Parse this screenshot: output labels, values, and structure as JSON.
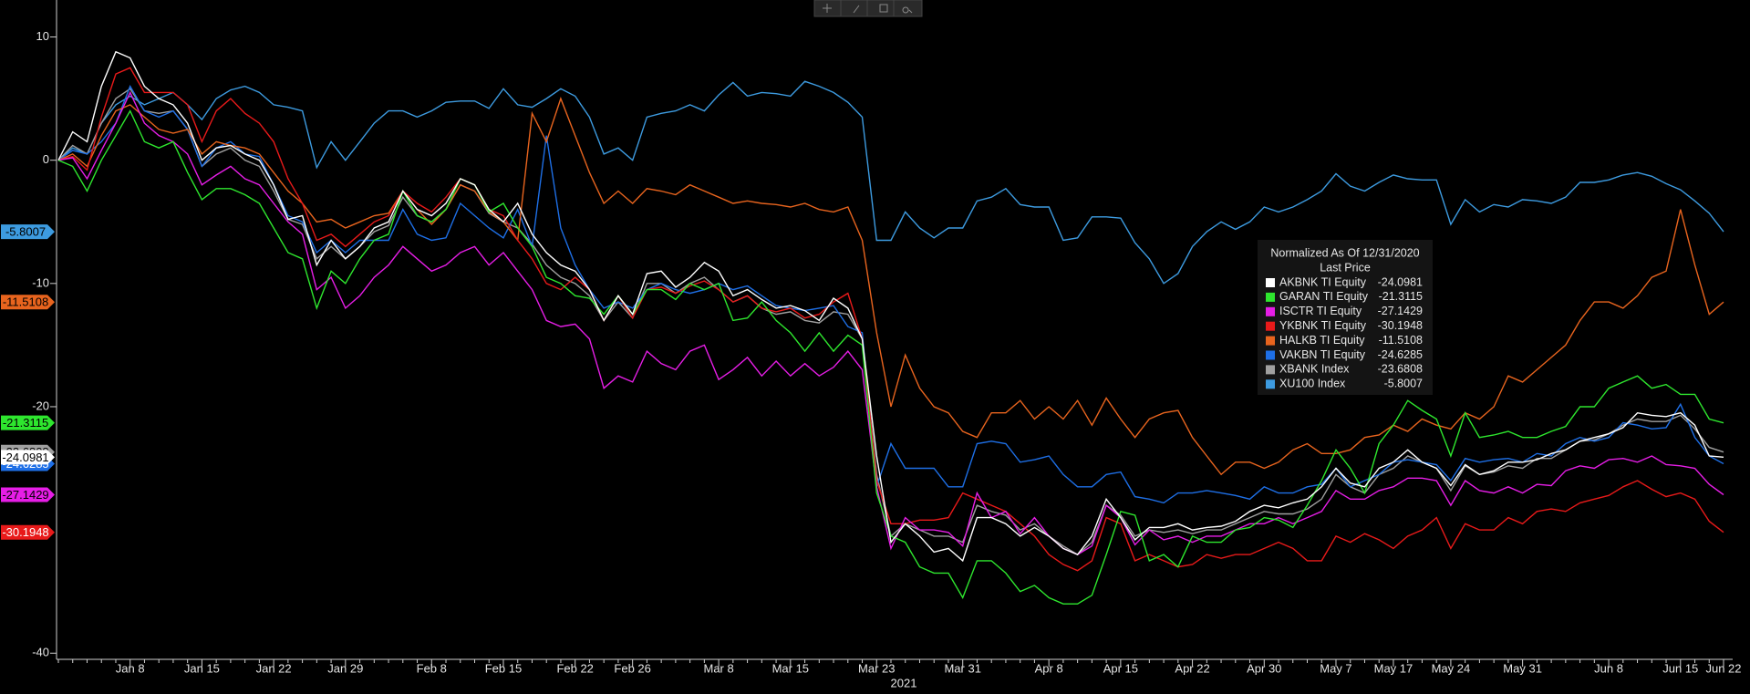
{
  "chart_data": {
    "type": "line",
    "legend_title": "Normalized As Of 12/31/2020",
    "legend_subtitle": "Last Price",
    "x_label": "2021",
    "categories": [
      null,
      null,
      null,
      null,
      null,
      "Jan 8",
      null,
      null,
      null,
      null,
      "Jan 15",
      null,
      null,
      null,
      null,
      "Jan 22",
      null,
      null,
      null,
      null,
      "Jan 29",
      null,
      null,
      null,
      null,
      null,
      "Feb 8",
      null,
      null,
      null,
      null,
      "Feb 15",
      null,
      null,
      null,
      null,
      "Feb 22",
      null,
      null,
      null,
      "Feb 26",
      null,
      null,
      null,
      null,
      null,
      "Mar 8",
      null,
      null,
      null,
      null,
      "Mar 15",
      null,
      null,
      null,
      null,
      null,
      "Mar 23",
      null,
      null,
      null,
      null,
      null,
      "Mar 31",
      null,
      null,
      null,
      null,
      null,
      "Apr 8",
      null,
      null,
      null,
      null,
      "Apr 15",
      null,
      null,
      null,
      null,
      "Apr 22",
      null,
      null,
      null,
      null,
      "Apr 30",
      null,
      null,
      null,
      null,
      "May 7",
      null,
      null,
      null,
      "May 17",
      null,
      null,
      null,
      "May 24",
      null,
      null,
      null,
      null,
      "May 31",
      null,
      null,
      null,
      null,
      null,
      "Jun 8",
      null,
      null,
      null,
      null,
      "Jun 15",
      null,
      null,
      "Jun 22"
    ],
    "ylim": [
      -40.5,
      13
    ],
    "yticks": [
      10,
      0,
      -10,
      -20,
      -40
    ],
    "series": [
      {
        "name": "AKBNK TI Equity",
        "color": "#ffffff",
        "values": [
          0,
          2.3,
          1.5,
          6,
          8.8,
          8.3,
          6,
          5,
          4.5,
          3,
          0,
          1,
          1.2,
          0.5,
          0,
          -2,
          -4.8,
          -4.5,
          -8.5,
          -6.5,
          -8,
          -7,
          -5.5,
          -5,
          -2.5,
          -4,
          -4.5,
          -3.5,
          -1.5,
          -2,
          -4,
          -5,
          -3.5,
          -6,
          -7.5,
          -8.5,
          -9,
          -10.5,
          -13,
          -11,
          -12.5,
          -9.2,
          -9,
          -10.3,
          -9.5,
          -8.3,
          -9,
          -11,
          -10.5,
          -11.3,
          -12,
          -11.8,
          -12.2,
          -13,
          -11.2,
          -12,
          -14.5,
          -24,
          -31,
          -29.5,
          -30.5,
          -31.8,
          -31.5,
          -32.5,
          -29,
          -29,
          -29.5,
          -30.5,
          -29.8,
          -30.5,
          -31.5,
          -32,
          -30.5,
          -27.5,
          -29,
          -30.8,
          -29.8,
          -29.8,
          -29.5,
          -30,
          -29.8,
          -29.7,
          -29.3,
          -28.5,
          -28,
          -28.2,
          -27.8,
          -27.5,
          -26.5,
          -25,
          -26.2,
          -26.5,
          -25,
          -24.5,
          -23.5,
          -24.5,
          -25,
          -26.4,
          -24.7,
          -25.5,
          -25.2,
          -24.5,
          -24.5,
          -24.3,
          -23.8,
          -23.5,
          -22.8,
          -22.5,
          -22.2,
          -21.7,
          -20.5,
          -20.7,
          -20.8,
          -20.5,
          -21.5,
          -24,
          -24.0981
        ]
      },
      {
        "name": "GARAN TI Equity",
        "color": "#2ee62e",
        "values": [
          0,
          -0.5,
          -2.5,
          0,
          2,
          4,
          1.5,
          1,
          1.5,
          -1,
          -3.2,
          -2.3,
          -2.3,
          -2.8,
          -3.5,
          -5.5,
          -7.5,
          -8,
          -12,
          -9,
          -10,
          -8,
          -6.5,
          -6,
          -2.5,
          -4.5,
          -5,
          -4,
          -1.5,
          -2,
          -4.2,
          -3.5,
          -5.5,
          -7,
          -9.5,
          -10,
          -11,
          -11.2,
          -12.5,
          -11,
          -12.5,
          -10.5,
          -10.5,
          -11.3,
          -10,
          -10.5,
          -10,
          -13,
          -12.8,
          -11.5,
          -13,
          -14,
          -15.5,
          -14,
          -15.5,
          -14.2,
          -15,
          -27,
          -30.5,
          -31,
          -33,
          -33.5,
          -33.5,
          -35.5,
          -32.5,
          -32.5,
          -33.5,
          -35,
          -34.5,
          -35.5,
          -36,
          -36,
          -35.3,
          -32,
          -28.5,
          -28.8,
          -32.5,
          -32,
          -33,
          -30.5,
          -31,
          -31,
          -30,
          -29.8,
          -29,
          -29.2,
          -29.8,
          -28,
          -26,
          -23.5,
          -25,
          -27,
          -23,
          -21.5,
          -19.5,
          -20.3,
          -21,
          -24,
          -20.5,
          -22.5,
          -22.3,
          -22,
          -22.5,
          -22.5,
          -22,
          -21.6,
          -20,
          -20,
          -18.5,
          -18,
          -17.5,
          -18.5,
          -18.2,
          -19,
          -19,
          -21,
          -21.3115
        ]
      },
      {
        "name": "ISCTR TI Equity",
        "color": "#e61ee6",
        "values": [
          0,
          0.2,
          -1.5,
          0.8,
          3,
          5.5,
          3,
          2,
          1.5,
          0.5,
          -2,
          -1.2,
          -0.5,
          -1.5,
          -2,
          -3.5,
          -5,
          -6,
          -10.5,
          -9.5,
          -12,
          -11,
          -9.5,
          -8.5,
          -7,
          -8,
          -9,
          -8.5,
          -7.5,
          -7,
          -8.5,
          -7.5,
          -9,
          -10.5,
          -13,
          -13.5,
          -13.3,
          -14.5,
          -18.5,
          -17.5,
          -18,
          -15.5,
          -16.5,
          -17,
          -15.5,
          -15,
          -17.8,
          -17,
          -16,
          -17.5,
          -16.3,
          -17.5,
          -16.5,
          -17.5,
          -16.8,
          -15.5,
          -17,
          -26.5,
          -31.5,
          -29,
          -30,
          -30,
          -30.2,
          -31.3,
          -27,
          -29,
          -28.5,
          -30.3,
          -29,
          -30.5,
          -31.5,
          -32,
          -31.3,
          -28,
          -29,
          -31.2,
          -30,
          -30.8,
          -30.5,
          -31,
          -30.5,
          -30.5,
          -30,
          -29.5,
          -29.5,
          -29,
          -29.5,
          -29,
          -28.5,
          -26.8,
          -27.5,
          -27.5,
          -26.8,
          -26.5,
          -25.8,
          -25.8,
          -26,
          -28,
          -26,
          -26.8,
          -27,
          -26.5,
          -27,
          -26.3,
          -26.4,
          -25.2,
          -24.8,
          -25,
          -24.3,
          -24.2,
          -24.5,
          -24,
          -24.7,
          -24.8,
          -25,
          -26.3,
          -27.1429
        ]
      },
      {
        "name": "YKBNK TI Equity",
        "color": "#e81a1a",
        "values": [
          0,
          0.3,
          -0.8,
          3.5,
          7,
          7.5,
          5.5,
          5.5,
          5.5,
          4.5,
          1.5,
          4,
          5,
          3.8,
          3,
          1.5,
          -1.5,
          -3.5,
          -6.5,
          -6,
          -7,
          -6,
          -5,
          -4.5,
          -2.5,
          -3.5,
          -4.2,
          -3,
          -1.5,
          -2,
          -4,
          -4.5,
          -6.5,
          -8,
          -10,
          -10.5,
          -9.5,
          -10.5,
          -13,
          -11,
          -12.8,
          -10.5,
          -10.3,
          -10.8,
          -10.2,
          -9.8,
          -10.5,
          -11.5,
          -11,
          -12,
          -12.3,
          -12,
          -12.8,
          -12.5,
          -11.5,
          -10.8,
          -14.5,
          -26,
          -29.5,
          -29.5,
          -29.2,
          -29.2,
          -29,
          -27,
          -27.5,
          -28,
          -28.5,
          -29.5,
          -30.5,
          -32,
          -32.8,
          -33.3,
          -32.5,
          -29,
          -29.5,
          -32.5,
          -32,
          -32.5,
          -33,
          -32.8,
          -32,
          -32.3,
          -32,
          -32,
          -31.5,
          -31,
          -31.5,
          -32.5,
          -32.5,
          -30.5,
          -31,
          -30.3,
          -30.8,
          -31.5,
          -30.5,
          -30,
          -29,
          -31.5,
          -29.5,
          -30,
          -30,
          -29,
          -29.5,
          -28.5,
          -28.3,
          -28.5,
          -27.8,
          -27.5,
          -27.2,
          -26.5,
          -26,
          -26.7,
          -27.3,
          -27,
          -27.5,
          -29.3,
          -30.1948
        ]
      },
      {
        "name": "HALKB TI Equity",
        "color": "#e8641e",
        "values": [
          0,
          0.5,
          -0.5,
          2,
          4,
          4.5,
          3.5,
          2.5,
          2.2,
          2.5,
          0.5,
          1.5,
          1.2,
          1,
          0.5,
          -1,
          -2.5,
          -3.5,
          -5,
          -4.8,
          -5.5,
          -5,
          -4.5,
          -4.3,
          -2.5,
          -4,
          -5.2,
          -4,
          -2,
          -2.5,
          -4.2,
          -5,
          -6.5,
          3.8,
          1.5,
          5,
          2,
          -1,
          -3.5,
          -2.5,
          -3.5,
          -2.3,
          -2.5,
          -2.8,
          -2,
          -2.5,
          -3,
          -3.5,
          -3.3,
          -3.5,
          -3.6,
          -3.8,
          -3.5,
          -4,
          -4.2,
          -3.8,
          -6.5,
          -14,
          -20,
          -15.8,
          -18.5,
          -20,
          -20.5,
          -22,
          -22.5,
          -20.5,
          -20.5,
          -19.5,
          -21,
          -20,
          -21,
          -19.5,
          -21.5,
          -19.3,
          -21,
          -22.5,
          -21,
          -20.5,
          -20.3,
          -22.5,
          -24,
          -25.5,
          -24.5,
          -24.5,
          -25,
          -24.5,
          -23.5,
          -23,
          -23.8,
          -23.8,
          -23.5,
          -22.5,
          -22.3,
          -21.5,
          -22,
          -21,
          -21.5,
          -21.8,
          -20.5,
          -21,
          -20,
          -17.5,
          -18,
          -17,
          -16,
          -15,
          -13,
          -11.5,
          -11.5,
          -12,
          -11,
          -9.5,
          -9,
          -4,
          -8.5,
          -12.5,
          -11.5108
        ]
      },
      {
        "name": "VAKBN TI Equity",
        "color": "#1e6fe6",
        "values": [
          0,
          0.8,
          0.5,
          1.5,
          3,
          6,
          4,
          3.5,
          4,
          2.5,
          -0.5,
          1,
          1.5,
          0.5,
          0.3,
          -2,
          -4.5,
          -5,
          -7.5,
          -6.5,
          -7.5,
          -6.5,
          -6.5,
          -6.5,
          -4,
          -6,
          -6.5,
          -6.3,
          -3.5,
          -4.5,
          -5.5,
          -6.3,
          -4,
          -7,
          2,
          -5.5,
          -8.5,
          -10.5,
          -12,
          -11.5,
          -12,
          -10.5,
          -10,
          -10.5,
          -10.8,
          -10.5,
          -10,
          -10.5,
          -10.2,
          -11,
          -11.8,
          -12,
          -12.2,
          -12,
          -11.8,
          -13.5,
          -14,
          -26.5,
          -23,
          -25,
          -25,
          -25,
          -26.5,
          -26.5,
          -23,
          -22.8,
          -23,
          -24.5,
          -24.3,
          -24,
          -25.5,
          -26.5,
          -26.5,
          -25.5,
          -25.3,
          -27.3,
          -27.5,
          -27.8,
          -27,
          -27,
          -26.8,
          -27,
          -27.2,
          -27.5,
          -26.5,
          -27,
          -27,
          -26.5,
          -26.3,
          -25,
          -26.5,
          -26,
          -25.5,
          -24.5,
          -24.3,
          -24.5,
          -24.7,
          -26,
          -24.2,
          -24.5,
          -24.3,
          -24.2,
          -24.5,
          -23.8,
          -24,
          -23,
          -22.5,
          -22.8,
          -22.5,
          -21.3,
          -21.5,
          -21.8,
          -21.7,
          -19.8,
          -22.5,
          -24,
          -24.6285
        ]
      },
      {
        "name": "XBANK Index",
        "color": "#a0a0a0",
        "values": [
          0,
          1.2,
          0.5,
          3,
          5,
          5.8,
          4,
          3.8,
          4,
          2.5,
          -0.5,
          0.5,
          1,
          0,
          -0.5,
          -2.5,
          -4.8,
          -5.2,
          -8,
          -7,
          -8,
          -7,
          -5.8,
          -5.3,
          -3,
          -4.5,
          -5,
          -4,
          -2,
          -2.5,
          -4.3,
          -5,
          -5.5,
          -6.8,
          -8.5,
          -9.5,
          -10,
          -11,
          -13,
          -11.5,
          -12.8,
          -10,
          -10,
          -10.8,
          -10,
          -9.5,
          -10.5,
          -11.5,
          -11,
          -12,
          -12.5,
          -12.3,
          -13,
          -13.2,
          -12.3,
          -12.5,
          -14.5,
          -25.5,
          -30.5,
          -29.5,
          -30,
          -30.5,
          -30.5,
          -31,
          -28,
          -28.5,
          -28.8,
          -30,
          -29.5,
          -30.5,
          -31.3,
          -32,
          -31,
          -28,
          -28.8,
          -30.5,
          -30,
          -30.2,
          -30,
          -30.3,
          -30,
          -30,
          -29.5,
          -29,
          -28.5,
          -28.7,
          -28.7,
          -28.3,
          -27.5,
          -25.5,
          -26.5,
          -27,
          -25.5,
          -25,
          -24,
          -24.5,
          -25,
          -26.8,
          -24.8,
          -25.5,
          -25.3,
          -24.8,
          -25,
          -24.2,
          -24.2,
          -23.5,
          -22.8,
          -22.7,
          -22.2,
          -21.5,
          -21,
          -21.2,
          -21.2,
          -20.7,
          -21.8,
          -23.3,
          -23.6808
        ]
      },
      {
        "name": "XU100 Index",
        "color": "#3d9be0",
        "values": [
          0,
          1,
          0.5,
          3,
          4.5,
          5.2,
          4.5,
          5,
          5.5,
          4.5,
          3.3,
          5,
          5.7,
          6,
          5.5,
          4.5,
          4.3,
          4,
          -0.6,
          1.5,
          0,
          1.5,
          3,
          4,
          4,
          3.5,
          4,
          4.7,
          4.8,
          4.8,
          4.2,
          5.8,
          4.5,
          4.3,
          5,
          5.8,
          5.2,
          3.5,
          0.5,
          1,
          0,
          3.5,
          3.8,
          4,
          4.5,
          4,
          5.3,
          6.3,
          5.2,
          5.5,
          5.4,
          5.2,
          6.4,
          6,
          5.5,
          4.7,
          3.5,
          -6.5,
          -6.5,
          -4.2,
          -5.5,
          -6.3,
          -5.5,
          -5.5,
          -3.3,
          -3,
          -2.3,
          -3.6,
          -3.8,
          -3.8,
          -6.5,
          -6.3,
          -4.6,
          -4.6,
          -4.7,
          -6.7,
          -8,
          -10,
          -9.2,
          -7,
          -5.8,
          -5,
          -5.6,
          -5,
          -3.8,
          -4.2,
          -3.8,
          -3.2,
          -2.5,
          -1.1,
          -2.1,
          -2.5,
          -1.8,
          -1.2,
          -1.5,
          -1.6,
          -1.6,
          -5.2,
          -3.2,
          -4.2,
          -3.6,
          -3.8,
          -3.2,
          -3.3,
          -3.5,
          -3,
          -1.8,
          -1.8,
          -1.6,
          -1.2,
          -1,
          -1.3,
          -1.9,
          -2.4,
          -3.3,
          -4.3,
          -5.8007
        ]
      }
    ]
  }
}
